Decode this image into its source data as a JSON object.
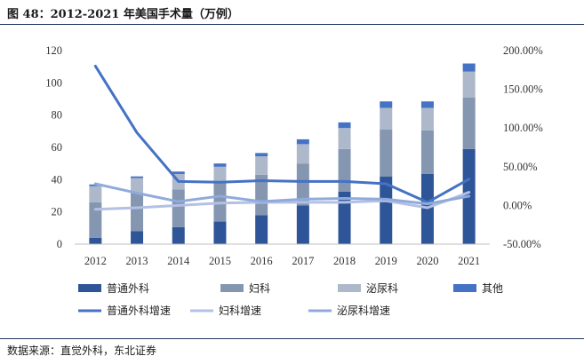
{
  "figure": {
    "title": "图 48：2012-2021 年美国手术量（万例）",
    "source": "数据来源：直觉外科，东北证券"
  },
  "chart_data": {
    "type": "bar",
    "stacked": true,
    "categories": [
      "2012",
      "2013",
      "2014",
      "2015",
      "2016",
      "2017",
      "2018",
      "2019",
      "2020",
      "2021"
    ],
    "series": [
      {
        "name": "普通外科",
        "values": [
          4,
          8,
          10.5,
          14,
          18,
          24,
          32.5,
          42,
          43.5,
          59
        ],
        "color": "#2e5597"
      },
      {
        "name": "妇科",
        "values": [
          22,
          24,
          23.5,
          24,
          25,
          26,
          26.5,
          29,
          27,
          32
        ],
        "color": "#8496b0"
      },
      {
        "name": "泌尿科",
        "values": [
          10,
          9,
          9.5,
          10,
          11.5,
          12,
          13,
          13.5,
          14,
          16
        ],
        "color": "#adb9ca"
      },
      {
        "name": "其他",
        "values": [
          1,
          1,
          1.5,
          2,
          2,
          3,
          3.5,
          4,
          4,
          5
        ],
        "color": "#4472c4"
      }
    ],
    "line_series": [
      {
        "name": "普通外科增速",
        "values": [
          180,
          94,
          31,
          30,
          32,
          31,
          31,
          28,
          4,
          34
        ],
        "color": "#4472c4",
        "width": 3
      },
      {
        "name": "妇科增速",
        "values": [
          -5,
          -3,
          0,
          3,
          4,
          4,
          4,
          6,
          -3,
          17
        ],
        "color": "#b4c0e4",
        "width": 3
      },
      {
        "name": "泌尿科增速",
        "values": [
          28,
          16,
          5,
          12,
          5,
          8,
          9,
          8,
          2,
          12
        ],
        "color": "#8faadc",
        "width": 3
      }
    ],
    "y_left": {
      "min": 0,
      "max": 120,
      "ticks": [
        0,
        20,
        40,
        60,
        80,
        100,
        120
      ]
    },
    "y_right": {
      "min": -50,
      "max": 200,
      "ticks": [
        "-50.00%",
        "0.00%",
        "50.00%",
        "100.00%",
        "150.00%",
        "200.00%"
      ]
    },
    "legend_position": "bottom",
    "grid": false
  }
}
